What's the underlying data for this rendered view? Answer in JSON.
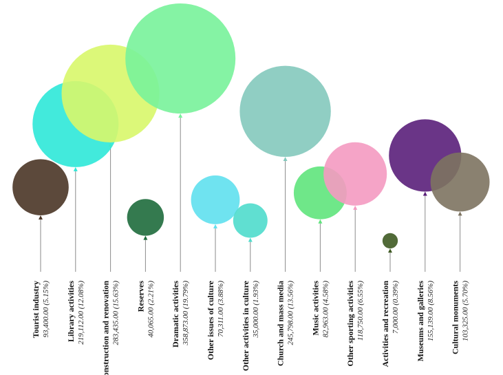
{
  "chart_data": {
    "type": "bubble",
    "title": "",
    "items": [
      {
        "name": "Tourist industry",
        "value": 93400.0,
        "value_label": "93,400.00 (5.15%)",
        "color": "#4a3526"
      },
      {
        "name": "Library activities",
        "value": 219112.0,
        "value_label": "219,112.00 (12.08%)",
        "color": "#2ee8d8"
      },
      {
        "name": "Reconstruction and renovation",
        "value": 283435.0,
        "value_label": "283,435.00 (15.63%)",
        "color": "#d8f76a"
      },
      {
        "name": "Reserves",
        "value": 40065.0,
        "value_label": "40,065.00 (2.21%)",
        "color": "#1e6b3c"
      },
      {
        "name": "Dramatic activities",
        "value": 358873.0,
        "value_label": "358,873.00 (19.79%)",
        "color": "#78f29a"
      },
      {
        "name": "Other issues of culture",
        "value": 70311.0,
        "value_label": "70,311.00 (3.88%)",
        "color": "#5fe0ee"
      },
      {
        "name": "Other activities in culture",
        "value": 35000.0,
        "value_label": "35,000.00 (1.93%)",
        "color": "#4fdccc"
      },
      {
        "name": "Church and mass media",
        "value": 245798.0,
        "value_label": "245,798.00 (13.56%)",
        "color": "#84c9bd"
      },
      {
        "name": "Music activities",
        "value": 82963.0,
        "value_label": "82,963.00 (4.58%)",
        "color": "#5fe47c"
      },
      {
        "name": "Other sporting activities",
        "value": 118750.0,
        "value_label": "118,750.00 (6.55%)",
        "color": "#f49ac1"
      },
      {
        "name": "Activities and recreation",
        "value": 7000.0,
        "value_label": "7,000.00 (0.39%)",
        "color": "#3e5a22"
      },
      {
        "name": "Museums and galleries",
        "value": 155139.0,
        "value_label": "155,139.00 (8.56%)",
        "color": "#5a1f7a"
      },
      {
        "name": "Cultural monuments",
        "value": 103325.0,
        "value_label": "103,325.00 (5.70%)",
        "color": "#7d7360"
      }
    ]
  }
}
